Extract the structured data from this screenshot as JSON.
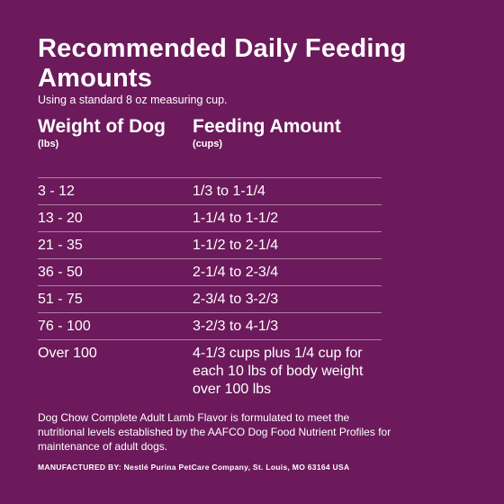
{
  "title": "Recommended Daily Feeding Amounts",
  "subtitle": "Using a standard 8 oz measuring cup.",
  "table": {
    "weight_header": "Weight of Dog",
    "weight_unit": "(lbs)",
    "feeding_header": "Feeding Amount",
    "feeding_unit": "(cups)",
    "rows": [
      {
        "weight": "3 - 12",
        "amount": "1/3 to 1-1/4"
      },
      {
        "weight": "13 - 20",
        "amount": "1-1/4 to 1-1/2"
      },
      {
        "weight": "21 - 35",
        "amount": "1-1/2 to 2-1/4"
      },
      {
        "weight": "36 - 50",
        "amount": "2-1/4 to 2-3/4"
      },
      {
        "weight": "51 - 75",
        "amount": "2-3/4 to 3-2/3"
      },
      {
        "weight": "76 - 100",
        "amount": "3-2/3 to 4-1/3"
      },
      {
        "weight": "Over 100",
        "amount": "4-1/3 cups plus 1/4 cup for each 10 lbs of body weight over 100 lbs"
      }
    ]
  },
  "note": "Dog Chow Complete Adult Lamb Flavor is formulated to meet the nutritional levels established by the AAFCO Dog Food Nutrient Profiles for maintenance of adult dogs.",
  "manufacturer": "MANUFACTURED BY: Nestlé Purina PetCare Company, St. Louis, MO 63164 USA",
  "colors": {
    "background": "#6c1a5b",
    "text": "#ffffff"
  }
}
